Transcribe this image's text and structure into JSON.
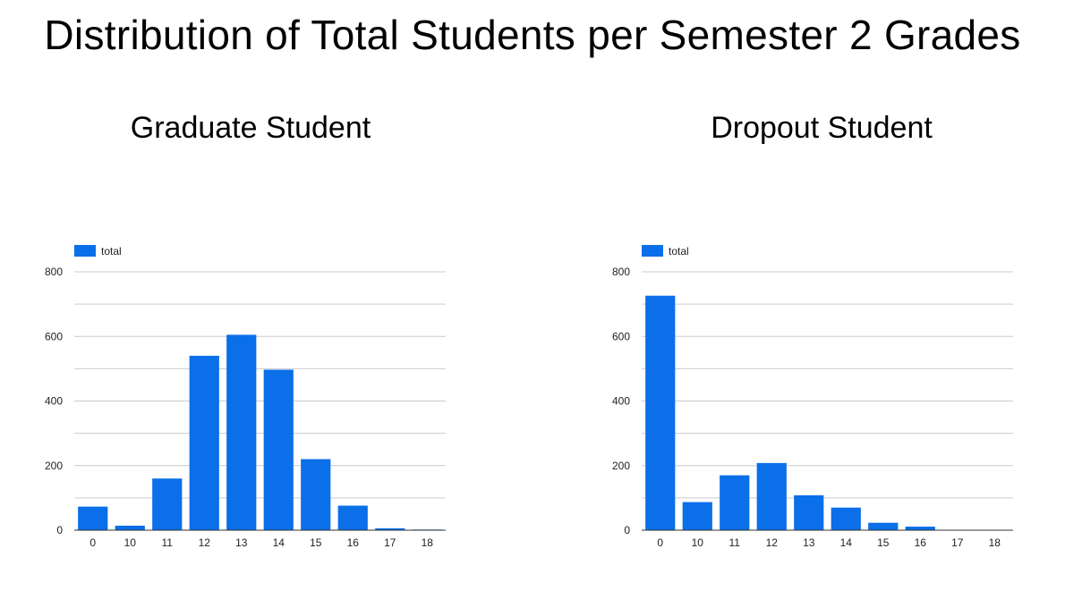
{
  "title": "Distribution of Total Students per Semester 2 Grades",
  "colors": {
    "bar": "#0a6fe8",
    "grid": "#cccccc",
    "axis": "#333333"
  },
  "chart_data": [
    {
      "type": "bar",
      "title": "Graduate Student",
      "xlabel": "",
      "ylabel": "",
      "categories": [
        "0",
        "10",
        "11",
        "12",
        "13",
        "14",
        "15",
        "16",
        "17",
        "18"
      ],
      "series": [
        {
          "name": "total",
          "values": [
            73,
            14,
            160,
            540,
            605,
            497,
            220,
            76,
            6,
            2
          ]
        }
      ],
      "ylim": [
        0,
        800
      ],
      "yticks": [
        0,
        200,
        400,
        600,
        800
      ],
      "grid": true,
      "legend": "top-left"
    },
    {
      "type": "bar",
      "title": "Dropout Student",
      "xlabel": "",
      "ylabel": "",
      "categories": [
        "0",
        "10",
        "11",
        "12",
        "13",
        "14",
        "15",
        "16",
        "17",
        "18"
      ],
      "series": [
        {
          "name": "total",
          "values": [
            726,
            87,
            170,
            208,
            108,
            70,
            23,
            11,
            1,
            1
          ]
        }
      ],
      "ylim": [
        0,
        800
      ],
      "yticks": [
        0,
        200,
        400,
        600,
        800
      ],
      "grid": true,
      "legend": "top-left"
    }
  ]
}
